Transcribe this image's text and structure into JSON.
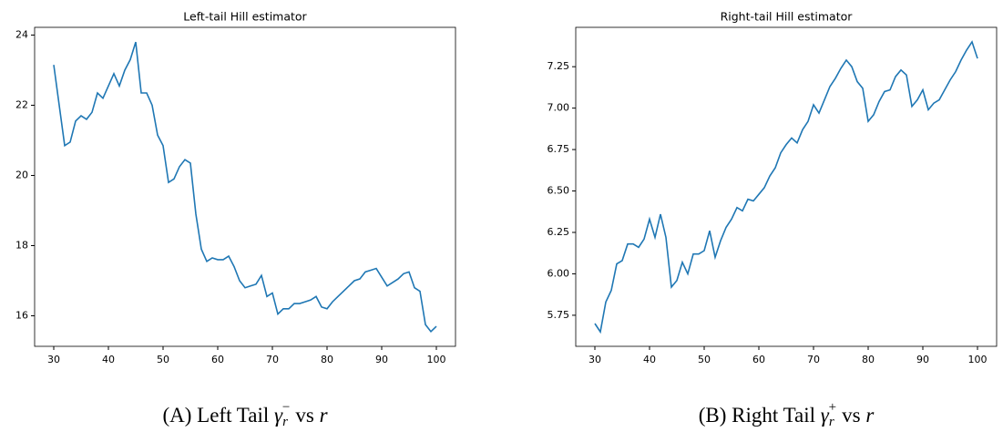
{
  "chart_data": [
    {
      "type": "line",
      "title": "Left-tail Hill estimator",
      "caption": {
        "label": "(A)",
        "text": "Left Tail",
        "symbol": "γ",
        "sub": "r",
        "sup": "−",
        "vs": "vs",
        "var": "r"
      },
      "x": [
        30,
        31,
        32,
        33,
        34,
        35,
        36,
        37,
        38,
        39,
        40,
        41,
        42,
        43,
        44,
        45,
        46,
        47,
        48,
        49,
        50,
        51,
        52,
        53,
        54,
        55,
        56,
        57,
        58,
        59,
        60,
        61,
        62,
        63,
        64,
        65,
        66,
        67,
        68,
        69,
        70,
        71,
        72,
        73,
        74,
        75,
        76,
        77,
        78,
        79,
        80,
        81,
        82,
        83,
        84,
        85,
        86,
        87,
        88,
        89,
        90,
        91,
        92,
        93,
        94,
        95,
        96,
        97,
        98,
        99,
        100
      ],
      "series": [
        {
          "color": "#1f77b4",
          "values": [
            23.15,
            22.0,
            20.85,
            20.95,
            21.55,
            21.7,
            21.6,
            21.8,
            22.35,
            22.2,
            22.55,
            22.9,
            22.55,
            23.0,
            23.3,
            23.8,
            22.35,
            22.35,
            22.0,
            21.15,
            20.85,
            19.8,
            19.9,
            20.25,
            20.45,
            20.35,
            18.9,
            17.9,
            17.55,
            17.65,
            17.6,
            17.6,
            17.7,
            17.4,
            17.0,
            16.8,
            16.85,
            16.9,
            17.15,
            16.55,
            16.65,
            16.05,
            16.2,
            16.2,
            16.35,
            16.35,
            16.4,
            16.45,
            16.55,
            16.25,
            16.2,
            16.4,
            16.55,
            16.7,
            16.85,
            17.0,
            17.05,
            17.25,
            17.3,
            17.35,
            17.1,
            16.85,
            16.95,
            17.05,
            17.2,
            17.25,
            16.8,
            16.7,
            15.75,
            15.55,
            15.7
          ]
        }
      ],
      "xlim": [
        26.5,
        103.5
      ],
      "xticks": [
        30,
        40,
        50,
        60,
        70,
        80,
        90,
        100
      ],
      "ylim": [
        15.13,
        24.22
      ],
      "yticks": [
        16,
        18,
        20,
        22,
        24
      ]
    },
    {
      "type": "line",
      "title": "Right-tail Hill estimator",
      "caption": {
        "label": "(B)",
        "text": "Right Tail",
        "symbol": "γ",
        "sub": "r",
        "sup": "+",
        "vs": "vs",
        "var": "r"
      },
      "x": [
        30,
        31,
        32,
        33,
        34,
        35,
        36,
        37,
        38,
        39,
        40,
        41,
        42,
        43,
        44,
        45,
        46,
        47,
        48,
        49,
        50,
        51,
        52,
        53,
        54,
        55,
        56,
        57,
        58,
        59,
        60,
        61,
        62,
        63,
        64,
        65,
        66,
        67,
        68,
        69,
        70,
        71,
        72,
        73,
        74,
        75,
        76,
        77,
        78,
        79,
        80,
        81,
        82,
        83,
        84,
        85,
        86,
        87,
        88,
        89,
        90,
        91,
        92,
        93,
        94,
        95,
        96,
        97,
        98,
        99,
        100
      ],
      "series": [
        {
          "color": "#1f77b4",
          "values": [
            5.7,
            5.65,
            5.83,
            5.9,
            6.06,
            6.08,
            6.18,
            6.18,
            6.16,
            6.21,
            6.33,
            6.22,
            6.36,
            6.22,
            5.92,
            5.96,
            6.07,
            6.0,
            6.12,
            6.12,
            6.14,
            6.26,
            6.1,
            6.2,
            6.28,
            6.33,
            6.4,
            6.38,
            6.45,
            6.44,
            6.48,
            6.52,
            6.59,
            6.64,
            6.73,
            6.78,
            6.82,
            6.79,
            6.87,
            6.92,
            7.02,
            6.97,
            7.05,
            7.13,
            7.18,
            7.24,
            7.29,
            7.25,
            7.16,
            7.12,
            6.92,
            6.96,
            7.04,
            7.1,
            7.11,
            7.19,
            7.23,
            7.2,
            7.01,
            7.05,
            7.11,
            6.99,
            7.03,
            7.05,
            7.11,
            7.17,
            7.22,
            7.29,
            7.35,
            7.4,
            7.3
          ]
        }
      ],
      "xlim": [
        26.5,
        103.5
      ],
      "xticks": [
        30,
        40,
        50,
        60,
        70,
        80,
        90,
        100
      ],
      "ylim": [
        5.5625,
        7.4875
      ],
      "yticks": [
        5.75,
        {
          "value": 6.0,
          "label": "6.00"
        },
        6.25,
        {
          "value": 6.5,
          "label": "6.50"
        },
        6.75,
        {
          "value": 7.0,
          "label": "7.00"
        },
        7.25
      ]
    }
  ]
}
